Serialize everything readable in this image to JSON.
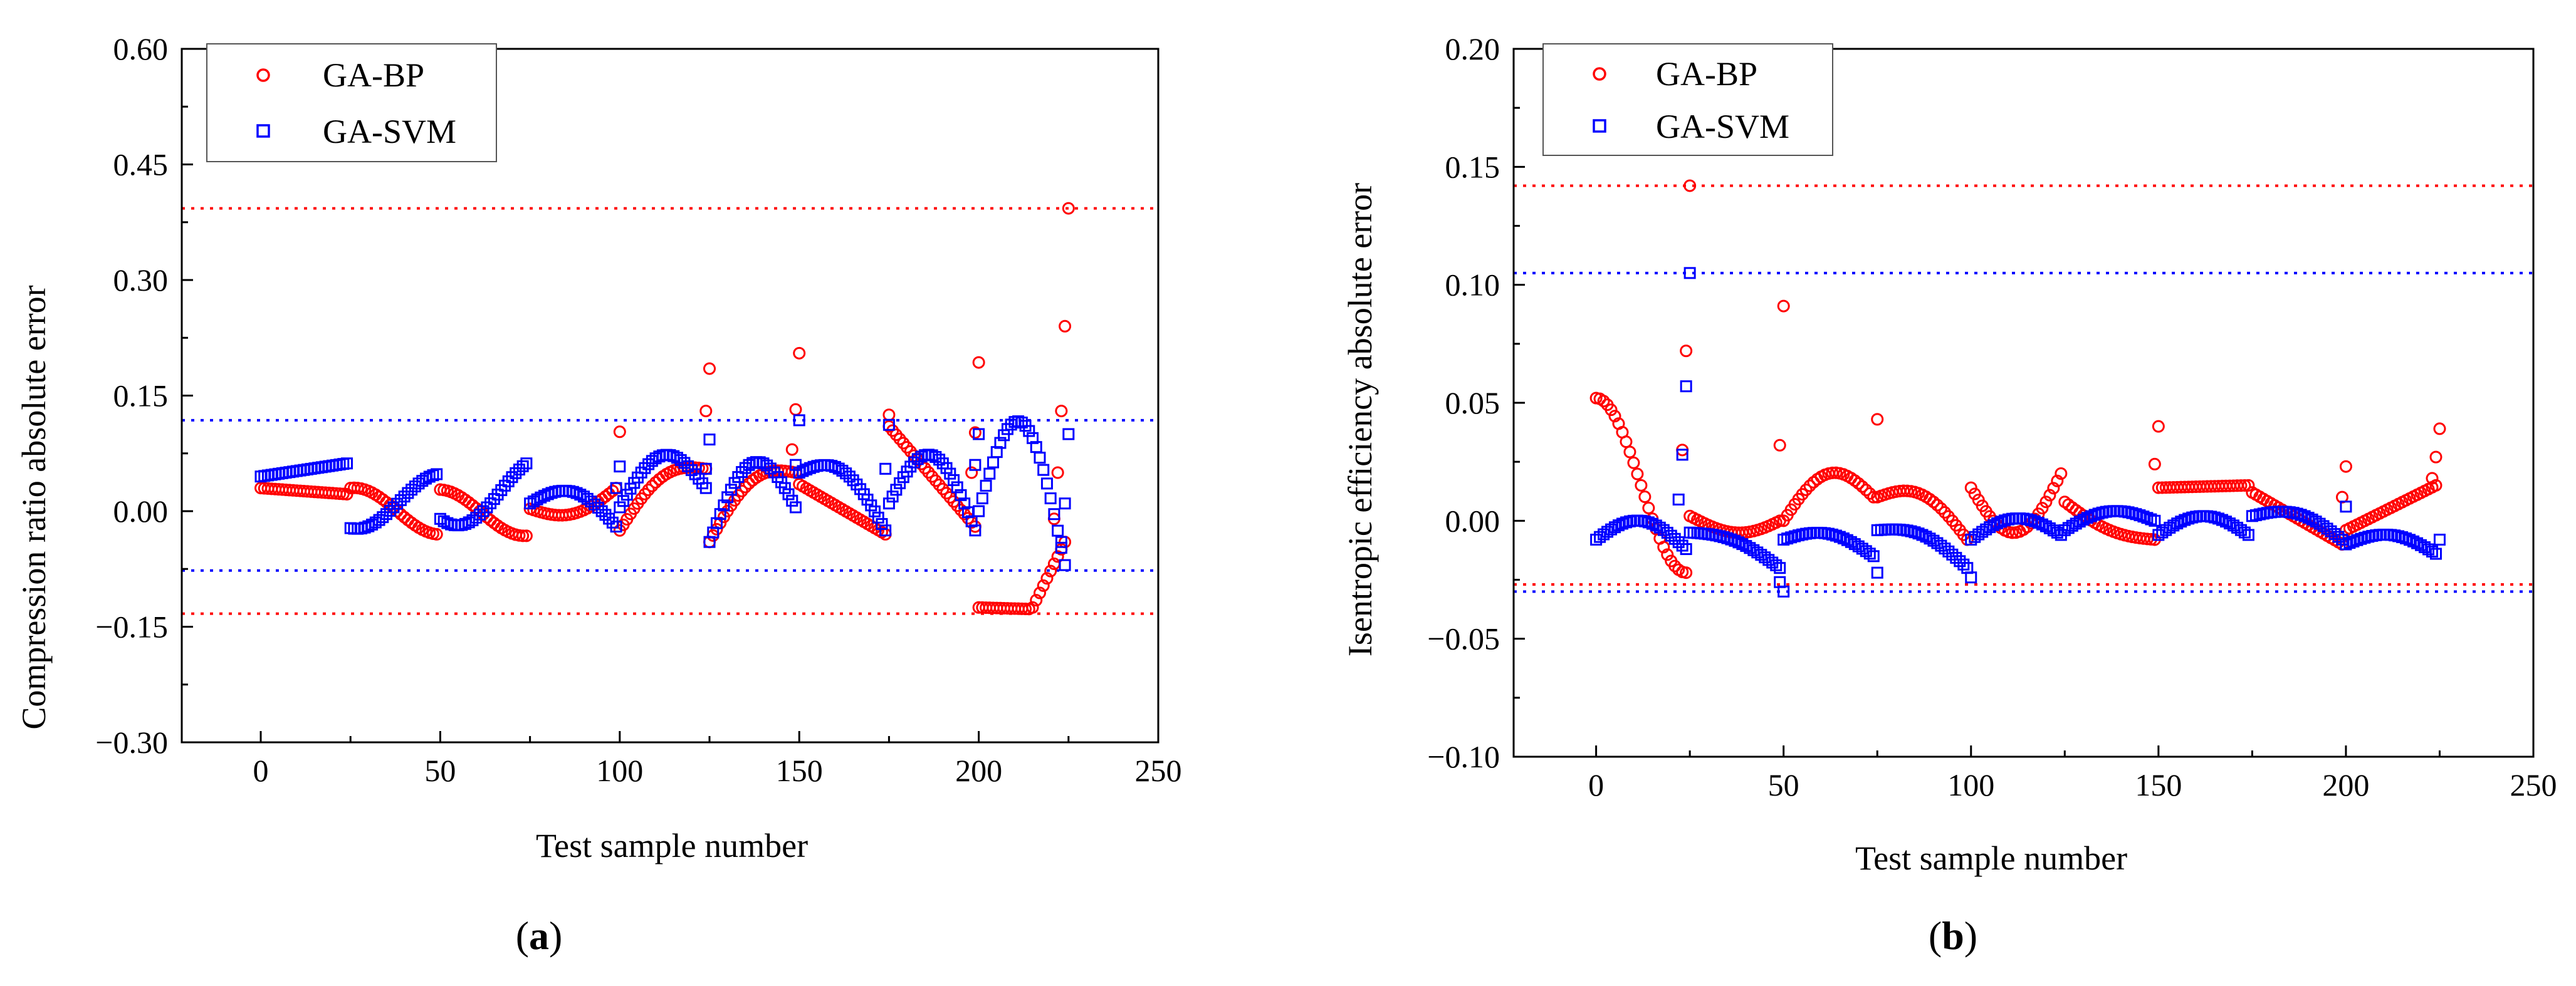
{
  "colors": {
    "bp": "#ff0000",
    "svm": "#0000ff",
    "axis": "#000000"
  },
  "chart_data": [
    {
      "panel": "a",
      "panel_label_parts": [
        "(",
        "a",
        ")"
      ],
      "type": "scatter",
      "title": "",
      "xlabel": "Test sample number",
      "ylabel": "Compression ratio absolute error",
      "xlim": [
        -22,
        250
      ],
      "ylim": [
        -0.3,
        0.6
      ],
      "xticks": [
        0,
        50,
        100,
        150,
        200,
        250
      ],
      "xtick_labels": [
        "0",
        "50",
        "100",
        "150",
        "200",
        "250"
      ],
      "yticks": [
        -0.3,
        -0.15,
        0.0,
        0.15,
        0.3,
        0.45,
        0.6
      ],
      "ytick_labels": [
        "−0.30",
        "−0.15",
        "0.00",
        "0.15",
        "0.30",
        "0.45",
        "0.60"
      ],
      "legend": {
        "position": "top-left",
        "entries": [
          "GA-BP",
          "GA-SVM"
        ]
      },
      "reference_lines": [
        {
          "series": "GA-BP",
          "y": 0.393
        },
        {
          "series": "GA-BP",
          "y": -0.133
        },
        {
          "series": "GA-SVM",
          "y": 0.118
        },
        {
          "series": "GA-SVM",
          "y": -0.077
        }
      ],
      "series": [
        {
          "name": "GA-BP",
          "marker": "circle",
          "generator": [
            {
              "x0": 0,
              "n": 25,
              "mode": "lin",
              "a": 0.03,
              "b": 0.022
            },
            {
              "x0": 25,
              "n": 25,
              "mode": "cos",
              "a": 0.03,
              "b": -0.03,
              "c": 0.004
            },
            {
              "x0": 50,
              "n": 25,
              "mode": "cos",
              "a": 0.028,
              "b": -0.032,
              "c": -0.002
            },
            {
              "x0": 75,
              "n": 25,
              "mode": "sin",
              "a": 0.003,
              "b": 0.03,
              "c": -0.02
            },
            {
              "x0": 100,
              "n": 25,
              "mode": "sin",
              "a": -0.025,
              "b": 0.055,
              "c": 0.03
            },
            {
              "x0": 125,
              "n": 25,
              "mode": "sin",
              "a": -0.04,
              "b": 0.05,
              "c": 0.035
            },
            {
              "x0": 150,
              "n": 25,
              "mode": "lin",
              "a": 0.035,
              "b": -0.03
            },
            {
              "x0": 175,
              "n": 25,
              "mode": "lin",
              "a": 0.11,
              "b": -0.02
            },
            {
              "x0": 200,
              "n": 15,
              "mode": "lin",
              "a": -0.125,
              "b": -0.127
            },
            {
              "x0": 215,
              "n": 10,
              "mode": "lin",
              "a": -0.125,
              "b": -0.04
            }
          ],
          "outliers": [
            [
              100,
              0.103
            ],
            [
              125,
              0.185
            ],
            [
              124,
              0.13
            ],
            [
              150,
              0.205
            ],
            [
              149,
              0.132
            ],
            [
              148,
              0.08
            ],
            [
              175,
              0.125
            ],
            [
              200,
              0.193
            ],
            [
              199,
              0.102
            ],
            [
              198,
              0.05
            ],
            [
              225,
              0.393
            ],
            [
              224,
              0.24
            ],
            [
              223,
              0.13
            ],
            [
              222,
              0.05
            ],
            [
              221,
              -0.01
            ]
          ]
        },
        {
          "name": "GA-SVM",
          "marker": "square",
          "generator": [
            {
              "x0": 0,
              "n": 25,
              "mode": "lin",
              "a": 0.045,
              "b": 0.062
            },
            {
              "x0": 25,
              "n": 25,
              "mode": "cos",
              "a": -0.022,
              "b": 0.048,
              "c": -0.008
            },
            {
              "x0": 50,
              "n": 25,
              "mode": "cos",
              "a": -0.01,
              "b": 0.062,
              "c": -0.026
            },
            {
              "x0": 75,
              "n": 25,
              "mode": "sin",
              "a": 0.01,
              "b": -0.02,
              "c": 0.03
            },
            {
              "x0": 100,
              "n": 25,
              "mode": "sin",
              "a": 0.005,
              "b": 0.03,
              "c": 0.055
            },
            {
              "x0": 125,
              "n": 25,
              "mode": "sin",
              "a": -0.04,
              "b": 0.005,
              "c": 0.08
            },
            {
              "x0": 150,
              "n": 25,
              "mode": "sin",
              "a": 0.05,
              "b": -0.025,
              "c": 0.04
            },
            {
              "x0": 175,
              "n": 25,
              "mode": "sin",
              "a": 0.01,
              "b": -0.025,
              "c": 0.08
            },
            {
              "x0": 200,
              "n": 25,
              "mode": "sin",
              "a": 0.0,
              "b": -0.07,
              "c": 0.15
            }
          ],
          "outliers": [
            [
              100,
              0.058
            ],
            [
              99,
              0.03
            ],
            [
              125,
              0.093
            ],
            [
              124,
              0.055
            ],
            [
              150,
              0.118
            ],
            [
              149,
              0.06
            ],
            [
              175,
              0.112
            ],
            [
              174,
              0.055
            ],
            [
              200,
              0.1
            ],
            [
              199,
              0.06
            ],
            [
              225,
              0.1
            ],
            [
              224,
              0.01
            ],
            [
              223,
              -0.04
            ]
          ]
        }
      ]
    },
    {
      "panel": "b",
      "panel_label_parts": [
        "(",
        "b",
        ")"
      ],
      "type": "scatter",
      "title": "",
      "xlabel": "Test sample number",
      "ylabel": "Isentropic efficiency absolute error",
      "xlim": [
        -22,
        250
      ],
      "ylim": [
        -0.1,
        0.2
      ],
      "xticks": [
        0,
        50,
        100,
        150,
        200,
        250
      ],
      "xtick_labels": [
        "0",
        "50",
        "100",
        "150",
        "200",
        "250"
      ],
      "yticks": [
        -0.1,
        -0.05,
        0.0,
        0.05,
        0.1,
        0.15,
        0.2
      ],
      "ytick_labels": [
        "−0.10",
        "−0.05",
        "0.00",
        "0.05",
        "0.10",
        "0.15",
        "0.20"
      ],
      "legend": {
        "position": "top-left",
        "entries": [
          "GA-BP",
          "GA-SVM"
        ]
      },
      "reference_lines": [
        {
          "series": "GA-BP",
          "y": 0.142
        },
        {
          "series": "GA-BP",
          "y": -0.027
        },
        {
          "series": "GA-SVM",
          "y": 0.105
        },
        {
          "series": "GA-SVM",
          "y": -0.03
        }
      ],
      "series": [
        {
          "name": "GA-BP",
          "marker": "circle",
          "generator": [
            {
              "x0": 0,
              "n": 25,
              "mode": "cos",
              "a": 0.052,
              "b": -0.022,
              "c": 0.0
            },
            {
              "x0": 25,
              "n": 25,
              "mode": "cos",
              "a": 0.002,
              "b": 0.0,
              "c": -0.006
            },
            {
              "x0": 50,
              "n": 25,
              "mode": "sin",
              "a": 0.0,
              "b": 0.01,
              "c": 0.015
            },
            {
              "x0": 75,
              "n": 25,
              "mode": "sin",
              "a": 0.01,
              "b": -0.008,
              "c": 0.01
            },
            {
              "x0": 100,
              "n": 25,
              "mode": "sin",
              "a": 0.014,
              "b": 0.02,
              "c": -0.022
            },
            {
              "x0": 125,
              "n": 25,
              "mode": "sin",
              "a": 0.008,
              "b": -0.008,
              "c": -0.004
            },
            {
              "x0": 150,
              "n": 25,
              "mode": "lin",
              "a": 0.014,
              "b": 0.015
            },
            {
              "x0": 175,
              "n": 25,
              "mode": "lin",
              "a": 0.012,
              "b": -0.01
            },
            {
              "x0": 200,
              "n": 25,
              "mode": "lin",
              "a": -0.004,
              "b": 0.015
            }
          ],
          "outliers": [
            [
              25,
              0.142
            ],
            [
              24,
              0.072
            ],
            [
              23,
              0.03
            ],
            [
              50,
              0.091
            ],
            [
              49,
              0.032
            ],
            [
              75,
              0.043
            ],
            [
              150,
              0.04
            ],
            [
              149,
              0.024
            ],
            [
              200,
              0.023
            ],
            [
              199,
              0.01
            ],
            [
              225,
              0.039
            ],
            [
              224,
              0.027
            ],
            [
              223,
              0.018
            ]
          ]
        },
        {
          "name": "GA-SVM",
          "marker": "square",
          "generator": [
            {
              "x0": 0,
              "n": 25,
              "mode": "sin",
              "a": -0.008,
              "b": -0.012,
              "c": 0.01
            },
            {
              "x0": 25,
              "n": 25,
              "mode": "sin",
              "a": -0.005,
              "b": -0.02,
              "c": 0.004
            },
            {
              "x0": 50,
              "n": 25,
              "mode": "sin",
              "a": -0.008,
              "b": -0.015,
              "c": 0.006
            },
            {
              "x0": 75,
              "n": 25,
              "mode": "sin",
              "a": -0.004,
              "b": -0.02,
              "c": 0.006
            },
            {
              "x0": 100,
              "n": 25,
              "mode": "sin",
              "a": -0.008,
              "b": -0.006,
              "c": 0.008
            },
            {
              "x0": 125,
              "n": 25,
              "mode": "sin",
              "a": -0.004,
              "b": 0.0,
              "c": 0.006
            },
            {
              "x0": 150,
              "n": 25,
              "mode": "sin",
              "a": -0.006,
              "b": -0.006,
              "c": 0.008
            },
            {
              "x0": 175,
              "n": 25,
              "mode": "sin",
              "a": 0.002,
              "b": -0.008,
              "c": 0.006
            },
            {
              "x0": 200,
              "n": 25,
              "mode": "sin",
              "a": -0.01,
              "b": -0.014,
              "c": 0.006
            }
          ],
          "outliers": [
            [
              25,
              0.105
            ],
            [
              24,
              0.057
            ],
            [
              23,
              0.028
            ],
            [
              22,
              0.009
            ],
            [
              50,
              -0.03
            ],
            [
              49,
              -0.026
            ],
            [
              75,
              -0.022
            ],
            [
              100,
              -0.024
            ],
            [
              200,
              0.006
            ],
            [
              225,
              -0.008
            ]
          ]
        }
      ]
    }
  ]
}
